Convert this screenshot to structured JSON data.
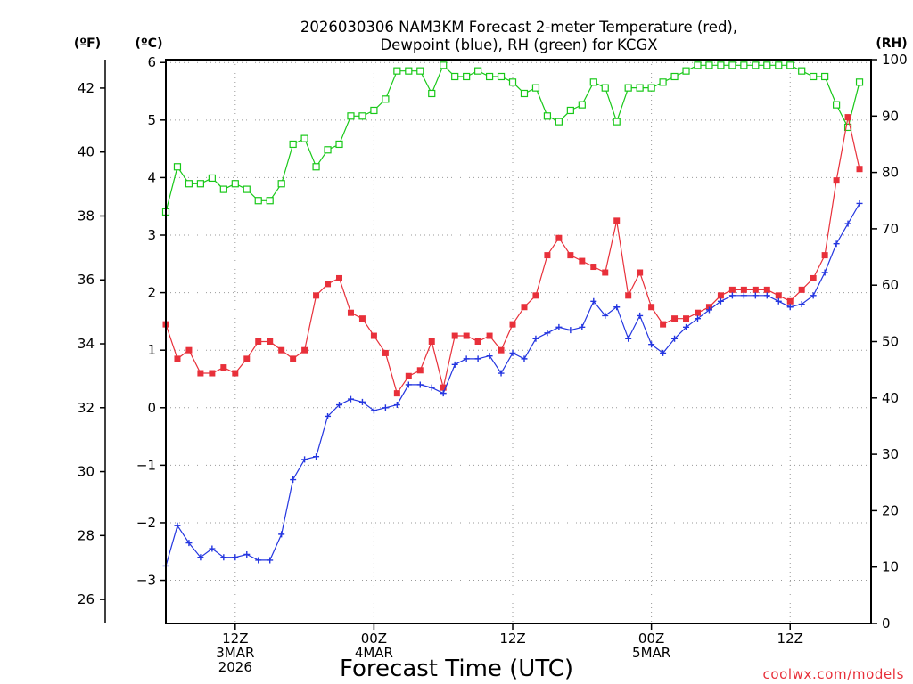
{
  "title": {
    "line1": "2026030306 NAM3KM Forecast 2-meter Temperature (red),",
    "line2": "Dewpoint (blue), RH (green) for KCGX"
  },
  "axis_labels": {
    "fahrenheit": "(ºF)",
    "celsius": "(ºC)",
    "rh": "(RH)"
  },
  "xlabel": "Forecast Time (UTC)",
  "credit": "coolwx.com/models",
  "colors": {
    "temperature": "#e8303a",
    "dewpoint": "#2436e0",
    "rh": "#18c818",
    "grid": "#999999",
    "credit": "#e8303a"
  },
  "chart_data": {
    "type": "line",
    "title": "2026030306 NAM3KM Forecast 2-meter Temperature (red), Dewpoint (blue), RH (green) for KCGX",
    "xlabel": "Forecast Time (UTC)",
    "x_unit": "forecast hour from 2026-03-03 06Z",
    "xlim": [
      0,
      61
    ],
    "grid": true,
    "x_ticks": [
      {
        "hour": 6,
        "lines": [
          "12Z",
          "3MAR",
          "2026"
        ]
      },
      {
        "hour": 18,
        "lines": [
          "00Z",
          "4MAR"
        ]
      },
      {
        "hour": 30,
        "lines": [
          "12Z"
        ]
      },
      {
        "hour": 42,
        "lines": [
          "00Z",
          "5MAR"
        ]
      },
      {
        "hour": 54,
        "lines": [
          "12Z"
        ]
      }
    ],
    "left_axis": {
      "label": "(ºC)",
      "ylim": [
        -3.75,
        6.05
      ],
      "ticks": [
        -3,
        -2,
        -1,
        0,
        1,
        2,
        3,
        4,
        5,
        6
      ]
    },
    "fahrenheit_axis": {
      "label": "(ºF)",
      "ticks": [
        26,
        28,
        30,
        32,
        34,
        36,
        38,
        40,
        42
      ]
    },
    "right_axis": {
      "label": "(RH)",
      "ylim": [
        0,
        100
      ],
      "ticks": [
        0,
        10,
        20,
        30,
        40,
        50,
        60,
        70,
        80,
        90,
        100
      ]
    },
    "series": [
      {
        "name": "Temperature",
        "axis": "celsius",
        "marker": "filled-square",
        "color": "#e8303a",
        "values": [
          1.45,
          0.85,
          1.0,
          0.6,
          0.6,
          0.7,
          0.6,
          0.85,
          1.15,
          1.15,
          1.0,
          0.85,
          1.0,
          1.95,
          2.15,
          2.25,
          1.65,
          1.55,
          1.25,
          0.95,
          0.25,
          0.55,
          0.65,
          1.15,
          0.35,
          1.25,
          1.25,
          1.15,
          1.25,
          1.0,
          1.45,
          1.75,
          1.95,
          2.65,
          2.95,
          2.65,
          2.55,
          2.45,
          2.35,
          3.25,
          1.95,
          2.35,
          1.75,
          1.45,
          1.55,
          1.55,
          1.65,
          1.75,
          1.95,
          2.05,
          2.05,
          2.05,
          2.05,
          1.95,
          1.85,
          2.05,
          2.25,
          2.65,
          3.95,
          5.05,
          4.15
        ]
      },
      {
        "name": "Dewpoint",
        "axis": "celsius",
        "marker": "plus",
        "color": "#2436e0",
        "values": [
          -2.75,
          -2.05,
          -2.35,
          -2.6,
          -2.45,
          -2.6,
          -2.6,
          -2.55,
          -2.65,
          -2.65,
          -2.2,
          -1.25,
          -0.9,
          -0.85,
          -0.15,
          0.05,
          0.15,
          0.1,
          -0.05,
          0.0,
          0.05,
          0.4,
          0.4,
          0.35,
          0.25,
          0.75,
          0.85,
          0.85,
          0.9,
          0.6,
          0.95,
          0.85,
          1.2,
          1.3,
          1.4,
          1.35,
          1.4,
          1.85,
          1.6,
          1.75,
          1.2,
          1.6,
          1.1,
          0.95,
          1.2,
          1.4,
          1.55,
          1.7,
          1.85,
          1.95,
          1.95,
          1.95,
          1.95,
          1.85,
          1.75,
          1.8,
          1.95,
          2.35,
          2.85,
          3.2,
          3.55
        ]
      },
      {
        "name": "RH",
        "axis": "rh",
        "marker": "open-square",
        "color": "#18c818",
        "values": [
          73,
          81,
          78,
          78,
          79,
          77,
          78,
          77,
          75,
          75,
          78,
          85,
          86,
          81,
          84,
          85,
          90,
          90,
          91,
          93,
          98,
          98,
          98,
          94,
          99,
          97,
          97,
          98,
          97,
          97,
          96,
          94,
          95,
          90,
          89,
          91,
          92,
          96,
          95,
          89,
          95,
          95,
          95,
          96,
          97,
          98,
          99,
          99,
          99,
          99,
          99,
          99,
          99,
          99,
          99,
          98,
          97,
          97,
          92,
          88,
          96
        ]
      }
    ]
  }
}
